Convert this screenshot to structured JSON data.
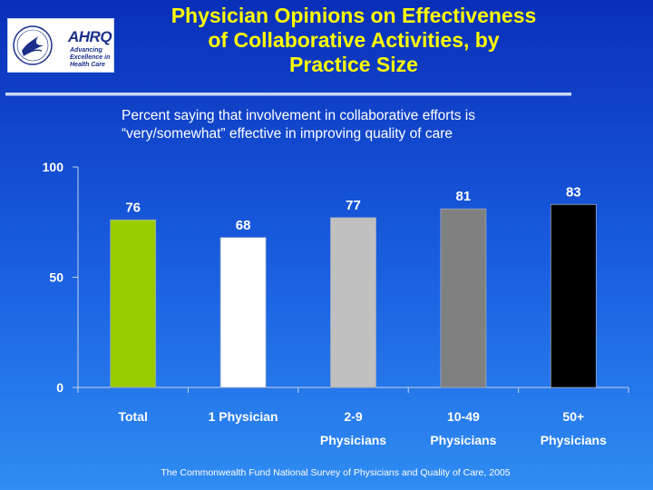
{
  "header": {
    "title_lines": [
      "Physician Opinions on Effectiveness",
      "of Collaborative Activities, by",
      "Practice Size"
    ],
    "subtitle_lines": [
      "Percent saying that involvement in collaborative efforts is",
      "“very/somewhat” effective in improving quality of care"
    ]
  },
  "logo": {
    "ahrq_letters": "AHRQ",
    "tagline_lines": [
      "Advancing",
      "Excellence in",
      "Health Care"
    ]
  },
  "footnote": "The Commonwealth Fund National Survey of Physicians and Quality of Care, 2005",
  "chart_data": {
    "type": "bar",
    "categories": [
      [
        "Total"
      ],
      [
        "1 Physician"
      ],
      [
        "2-9",
        "Physicians"
      ],
      [
        "10-49",
        "Physicians"
      ],
      [
        "50+",
        "Physicians"
      ]
    ],
    "values": [
      76,
      68,
      77,
      81,
      83
    ],
    "bar_colors": [
      "#99cc00",
      "#ffffff",
      "#c0c0c0",
      "#808080",
      "#000000"
    ],
    "ylim": [
      0,
      100
    ],
    "yticks": [
      0,
      50,
      100
    ],
    "grid": false,
    "legend": false,
    "data_labels": true
  }
}
